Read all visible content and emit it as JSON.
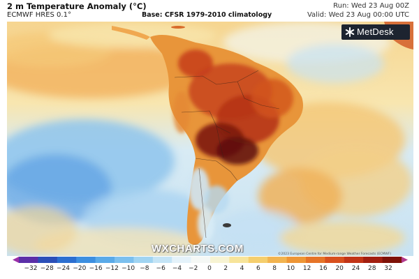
{
  "header": {
    "title": "2 m Temperature Anomaly (°C)",
    "model": "ECMWF HRES 0.1°",
    "base": "Base: CFSR 1979-2010 climatology",
    "run": "Run: Wed 23 Aug 00Z",
    "valid": "Valid: Wed 23 Aug 00:00 UTC"
  },
  "logo": {
    "name": "MetDesk",
    "icon": "metdesk-logo-icon"
  },
  "watermark": "WXCHARTS.COM",
  "copyright": "©2023 European Centre for Medium-range Weather Forecasts (ECMWF)",
  "legend": {
    "ticks": [
      "−32",
      "−28",
      "−24",
      "−20",
      "−16",
      "−12",
      "−10",
      "−8",
      "−6",
      "−4",
      "−2",
      "0",
      "2",
      "4",
      "6",
      "8",
      "10",
      "12",
      "16",
      "20",
      "24",
      "28",
      "32"
    ],
    "colors": [
      "#9a2fa8",
      "#5b2fa8",
      "#2b4fb8",
      "#2c6fd0",
      "#3d8fe0",
      "#5aaae8",
      "#7cc0ee",
      "#a0d4f2",
      "#c4e4f6",
      "#e4f2fa",
      "#f5f8f5",
      "#f7f3d2",
      "#f7e49a",
      "#f5cf6e",
      "#f2b450",
      "#ee9636",
      "#e67428",
      "#d8501e",
      "#c23416",
      "#a21e10",
      "#7e1208",
      "#b23a8e"
    ]
  },
  "map": {
    "region": "South America",
    "colors": {
      "ocean_warm": "#f6d28a",
      "ocean_pale": "#f6efcf",
      "ocean_cool": "#b9dcf2",
      "ocean_cold": "#6aaee8",
      "land_hot": "#c0391a",
      "land_very_hot": "#6e1410",
      "land_cool": "#cfe6f4"
    }
  }
}
